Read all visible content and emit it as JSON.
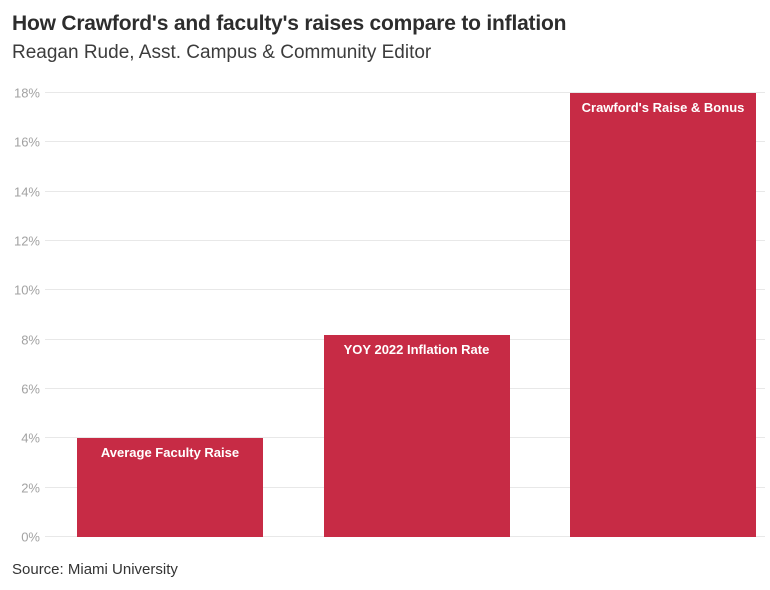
{
  "header": {
    "title": "How Crawford's and faculty's raises compare to inflation",
    "subtitle": "Reagan Rude, Asst. Campus & Community Editor"
  },
  "footer": {
    "source": "Source: Miami University"
  },
  "colors": {
    "bar": "#c72b45",
    "bar_label_text": "#ffffff",
    "gridline": "#e8e8e8",
    "axis_text": "#a2a2a2",
    "title_text": "#2d2d2d",
    "subtitle_text": "#3c3c3c",
    "source_text": "#343434",
    "background": "#ffffff"
  },
  "chart_data": {
    "type": "bar",
    "categories": [
      "Average Faculty Raise",
      "YOY 2022 Inflation Rate",
      "Crawford's Raise & Bonus"
    ],
    "values": [
      4,
      8.2,
      18
    ],
    "bar_labels": [
      "Average Faculty Raise",
      "YOY 2022 Inflation Rate",
      "Crawford's Raise & Bonus"
    ],
    "title": "How Crawford's and faculty's raises compare to inflation",
    "xlabel": "",
    "ylabel": "",
    "ylim": [
      0,
      18
    ],
    "ytick_values": [
      0,
      2,
      4,
      6,
      8,
      10,
      12,
      14,
      16,
      18
    ],
    "ytick_labels": [
      "0%",
      "2%",
      "4%",
      "6%",
      "8%",
      "10%",
      "12%",
      "14%",
      "16%",
      "18%"
    ],
    "grid": "horizontal",
    "legend": "none",
    "bar_label_position": "inside-top"
  }
}
